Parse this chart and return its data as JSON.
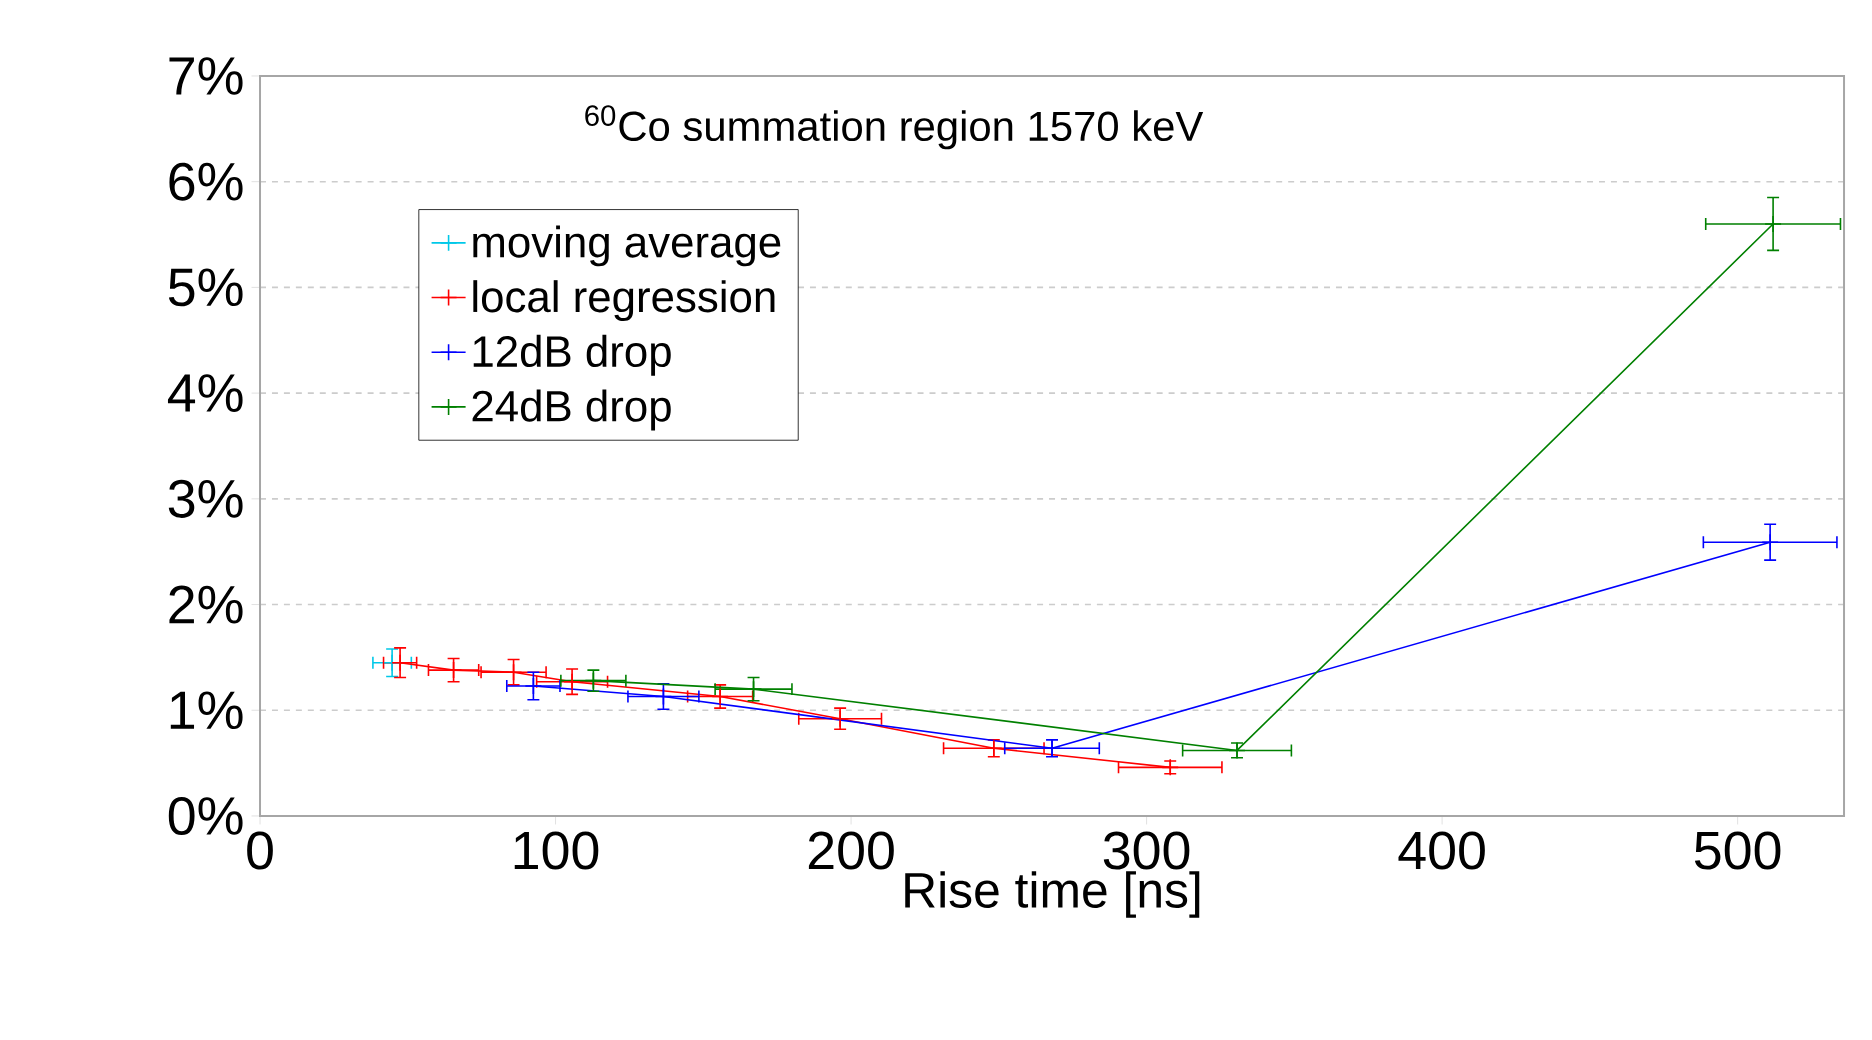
{
  "chart_data": {
    "type": "line",
    "title": "$^{60}$Co summation region 1570 keV",
    "xlabel": "Rise time [ns]",
    "xlim": [
      0,
      536
    ],
    "ylim": [
      0,
      7
    ],
    "xticks": [
      0,
      100,
      200,
      300,
      400,
      500
    ],
    "yticks": [
      {
        "value": 0,
        "label": "0%"
      },
      {
        "value": 1,
        "label": "1%"
      },
      {
        "value": 2,
        "label": "2%"
      },
      {
        "value": 3,
        "label": "3%"
      },
      {
        "value": 4,
        "label": "4%"
      },
      {
        "value": 5,
        "label": "5%"
      },
      {
        "value": 6,
        "label": "6%"
      },
      {
        "value": 7,
        "label": "7%"
      }
    ],
    "grid": "y",
    "legend": "top left",
    "marker": "cross",
    "line_style": "solid",
    "series": [
      {
        "name": "moving average",
        "color": "#00c8e8",
        "x": [
          44.7
        ],
        "values": [
          1.45
        ],
        "errors": [
          0.13
        ],
        "xerrors": [
          6.5
        ]
      },
      {
        "name": "local regression",
        "color": "#ff0000",
        "x": [
          47.4,
          65.5,
          85.8,
          105.6,
          155.7,
          196.3,
          248.3,
          308
        ],
        "values": [
          1.45,
          1.38,
          1.36,
          1.27,
          1.13,
          0.92,
          0.64,
          0.46
        ],
        "errors": [
          0.14,
          0.11,
          0.12,
          0.12,
          0.11,
          0.1,
          0.08,
          0.06
        ],
        "xerrors": [
          5.6,
          8.5,
          11,
          12,
          11,
          14,
          17,
          17.5
        ]
      },
      {
        "name": "12dB drop",
        "color": "#0000ff",
        "x": [
          92.5,
          136.5,
          268,
          511
        ],
        "values": [
          1.23,
          1.13,
          0.64,
          2.59
        ],
        "errors": [
          0.13,
          0.12,
          0.08,
          0.17
        ],
        "xerrors": [
          9,
          12,
          16,
          22.6
        ]
      },
      {
        "name": "24dB drop",
        "color": "#008000",
        "x": [
          112.8,
          167,
          330.6,
          512
        ],
        "values": [
          1.28,
          1.2,
          0.62,
          5.6
        ],
        "errors": [
          0.1,
          0.11,
          0.07,
          0.25
        ],
        "xerrors": [
          11,
          13,
          18.4,
          22.8
        ]
      }
    ]
  }
}
